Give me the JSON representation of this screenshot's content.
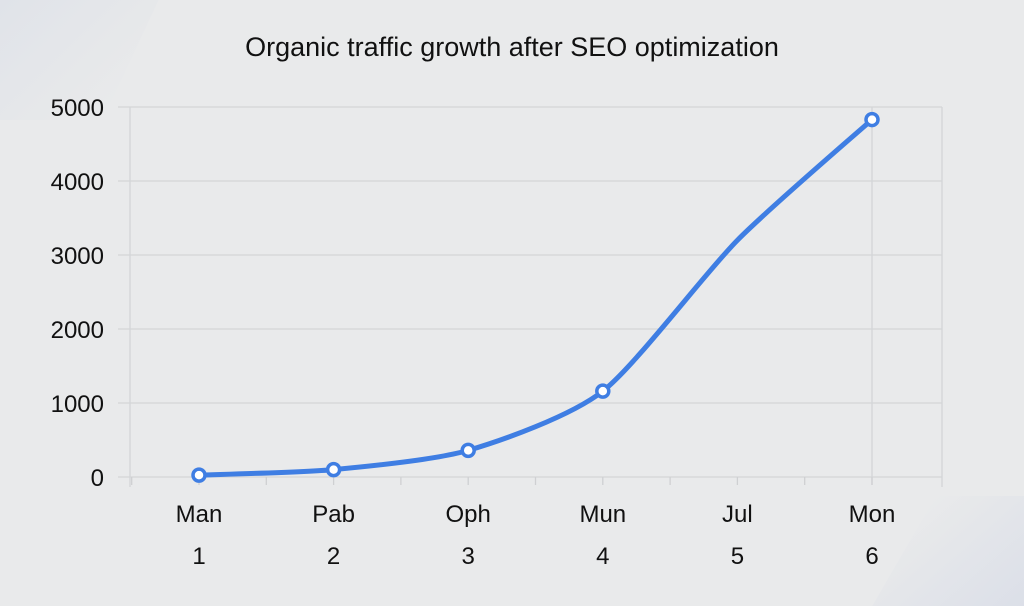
{
  "chart_data": {
    "type": "line",
    "title": "Organic traffic growth after SEO optimization",
    "xlabel": "",
    "ylabel": "",
    "categories": [
      "Man",
      "Pab",
      "Oph",
      "Mun",
      "Jul",
      "Mon"
    ],
    "category_numbers": [
      "1",
      "2",
      "3",
      "4",
      "5",
      "6"
    ],
    "series": [
      {
        "name": "Organic traffic",
        "values": [
          25,
          100,
          360,
          1160,
          3200,
          4830
        ],
        "markers": [
          true,
          true,
          true,
          true,
          false,
          true
        ],
        "color": "#3f7ee3"
      }
    ],
    "ylim": [
      0,
      5000
    ],
    "yticks": [
      "0",
      "1000",
      "2000",
      "3000",
      "4000",
      "5000"
    ],
    "grid": true,
    "legend": "none"
  }
}
